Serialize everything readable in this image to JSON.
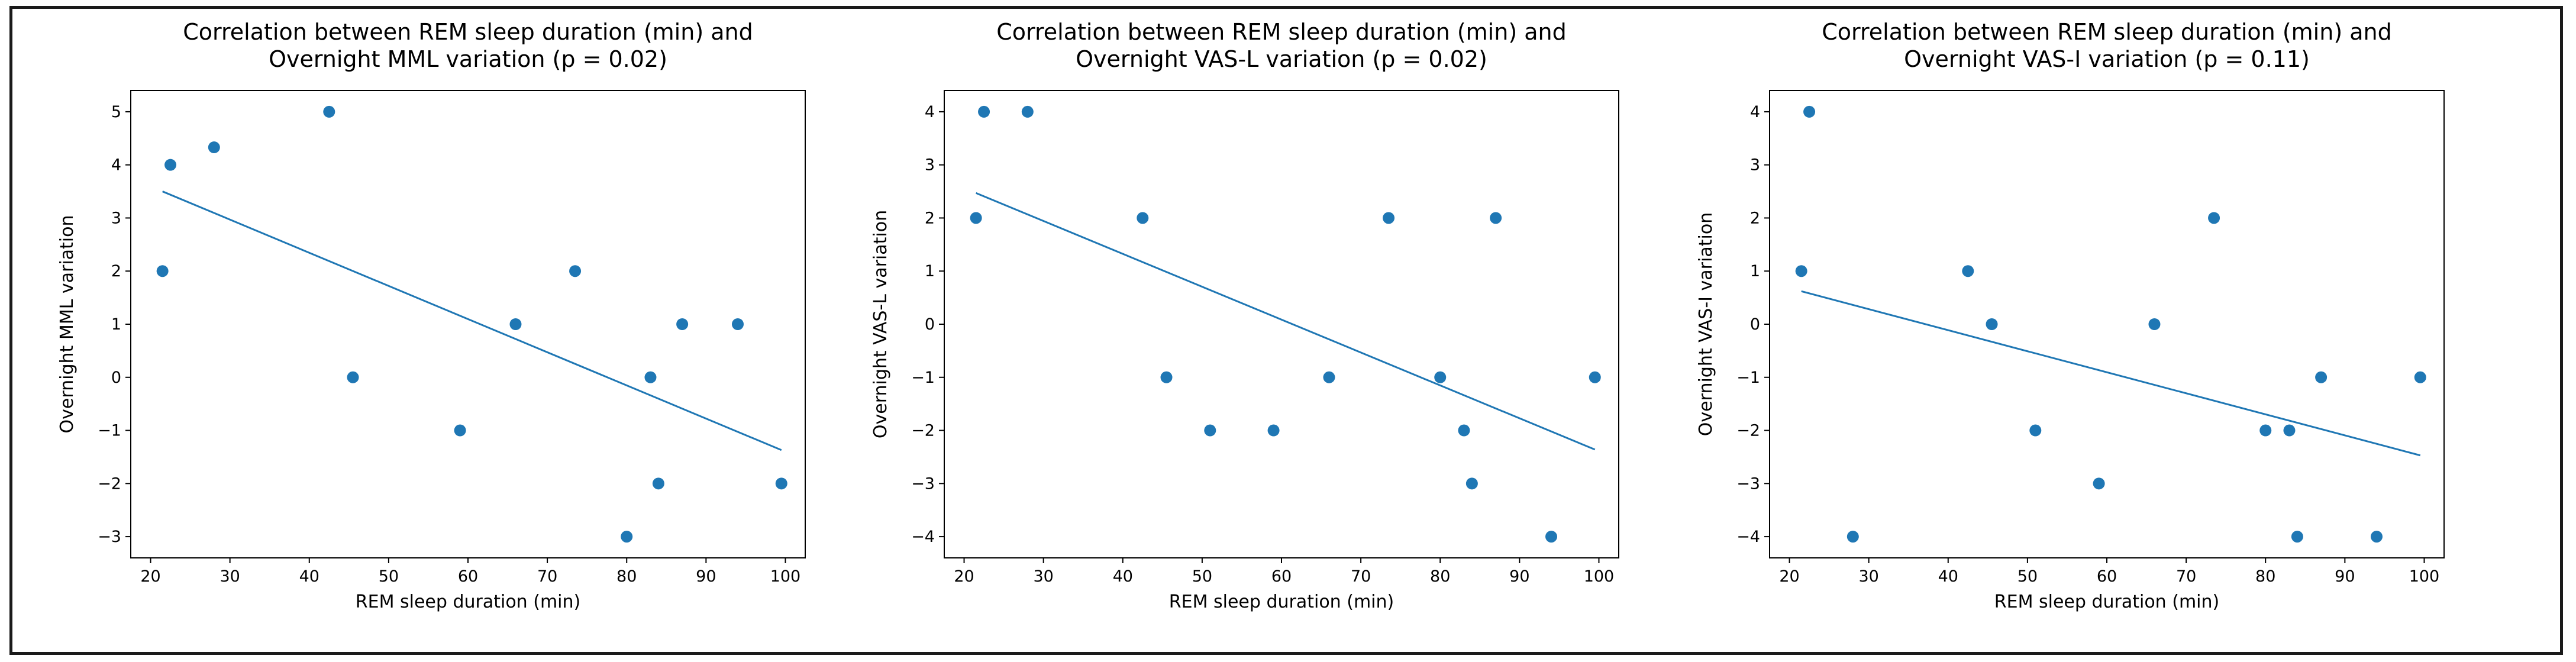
{
  "chart_data": [
    {
      "type": "scatter",
      "title": [
        "Correlation between REM sleep duration (min) and",
        "Overnight MML variation (p = 0.02)"
      ],
      "xlabel": "REM sleep duration (min)",
      "ylabel": "Overnight MML variation",
      "xlim": [
        17.5,
        102.5
      ],
      "ylim": [
        -3.4,
        5.4
      ],
      "xticks": [
        20,
        30,
        40,
        50,
        60,
        70,
        80,
        90,
        100
      ],
      "yticks": [
        -3,
        -2,
        -1,
        0,
        1,
        2,
        3,
        4,
        5
      ],
      "points": [
        [
          21.5,
          2
        ],
        [
          22.5,
          4
        ],
        [
          28,
          4.33
        ],
        [
          42.5,
          5
        ],
        [
          45.5,
          0
        ],
        [
          59,
          -1
        ],
        [
          66,
          1
        ],
        [
          73.5,
          2
        ],
        [
          80,
          -3
        ],
        [
          83,
          0
        ],
        [
          84,
          -2
        ],
        [
          87,
          1
        ],
        [
          94,
          1
        ],
        [
          99.5,
          -2
        ]
      ],
      "trendline": [
        [
          21.5,
          3.5
        ],
        [
          99.5,
          -1.37
        ]
      ],
      "color": "#1f77b4"
    },
    {
      "type": "scatter",
      "title": [
        "Correlation between REM sleep duration (min) and",
        "Overnight VAS-L variation (p = 0.02)"
      ],
      "xlabel": "REM sleep duration (min)",
      "ylabel": "Overnight VAS-L variation",
      "xlim": [
        17.5,
        102.5
      ],
      "ylim": [
        -4.4,
        4.4
      ],
      "xticks": [
        20,
        30,
        40,
        50,
        60,
        70,
        80,
        90,
        100
      ],
      "yticks": [
        -4,
        -3,
        -2,
        -1,
        0,
        1,
        2,
        3,
        4
      ],
      "points": [
        [
          21.5,
          2
        ],
        [
          22.5,
          4
        ],
        [
          28,
          4
        ],
        [
          42.5,
          2
        ],
        [
          45.5,
          -1
        ],
        [
          51,
          -2
        ],
        [
          59,
          -2
        ],
        [
          66,
          -1
        ],
        [
          73.5,
          2
        ],
        [
          80,
          -1
        ],
        [
          83,
          -2
        ],
        [
          84,
          -3
        ],
        [
          87,
          2
        ],
        [
          94,
          -4
        ],
        [
          99.5,
          -1
        ]
      ],
      "trendline": [
        [
          21.5,
          2.47
        ],
        [
          99.5,
          -2.36
        ]
      ],
      "color": "#1f77b4"
    },
    {
      "type": "scatter",
      "title": [
        "Correlation between REM sleep duration (min) and",
        "Overnight VAS-I variation (p = 0.11)"
      ],
      "xlabel": "REM sleep duration (min)",
      "ylabel": "Overnight VAS-I variation",
      "xlim": [
        17.5,
        102.5
      ],
      "ylim": [
        -4.4,
        4.4
      ],
      "xticks": [
        20,
        30,
        40,
        50,
        60,
        70,
        80,
        90,
        100
      ],
      "yticks": [
        -4,
        -3,
        -2,
        -1,
        0,
        1,
        2,
        3,
        4
      ],
      "points": [
        [
          21.5,
          1
        ],
        [
          22.5,
          4
        ],
        [
          28,
          -4
        ],
        [
          42.5,
          1
        ],
        [
          45.5,
          0
        ],
        [
          51,
          -2
        ],
        [
          59,
          -3
        ],
        [
          66,
          0
        ],
        [
          73.5,
          2
        ],
        [
          80,
          -2
        ],
        [
          83,
          -2
        ],
        [
          84,
          -4
        ],
        [
          87,
          -1
        ],
        [
          94,
          -4
        ],
        [
          99.5,
          -1
        ]
      ],
      "trendline": [
        [
          21.5,
          0.62
        ],
        [
          99.5,
          -2.47
        ]
      ],
      "color": "#1f77b4"
    }
  ]
}
